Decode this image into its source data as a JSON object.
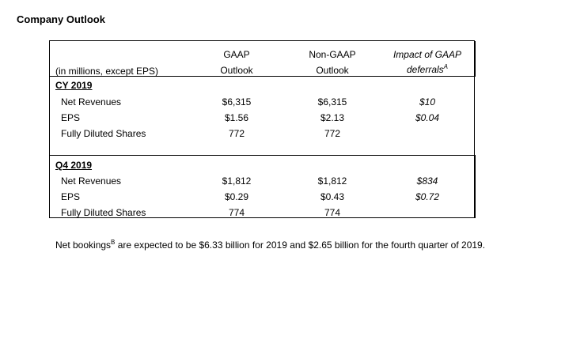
{
  "title": "Company Outlook",
  "table": {
    "units_label": "(in millions, except EPS)",
    "columns": [
      {
        "line1": "GAAP",
        "line2": "Outlook"
      },
      {
        "line1": "Non-GAAP",
        "line2": "Outlook"
      },
      {
        "line1": "Impact of GAAP",
        "line2": "deferrals",
        "sup": "A"
      }
    ],
    "sections": [
      {
        "label": "CY 2019",
        "rows": [
          {
            "label": "Net Revenues",
            "gaap": "$6,315",
            "nongaap": "$6,315",
            "impact": "$10"
          },
          {
            "label": "EPS",
            "gaap": "$1.56",
            "nongaap": "$2.13",
            "impact": "$0.04"
          },
          {
            "label": "Fully Diluted Shares",
            "gaap": "772",
            "nongaap": "772",
            "impact": ""
          }
        ]
      },
      {
        "label": "Q4 2019",
        "rows": [
          {
            "label": "Net Revenues",
            "gaap": "$1,812",
            "nongaap": "$1,812",
            "impact": "$834"
          },
          {
            "label": "EPS",
            "gaap": "$0.29",
            "nongaap": "$0.43",
            "impact": "$0.72"
          },
          {
            "label": "Fully Diluted Shares",
            "gaap": "774",
            "nongaap": "774",
            "impact": ""
          }
        ]
      }
    ]
  },
  "footnote": {
    "part1": "Net bookings",
    "sup": "B",
    "part2": " are expected to be $6.33 billion for 2019 and $2.65 billion for the fourth quarter of 2019."
  }
}
